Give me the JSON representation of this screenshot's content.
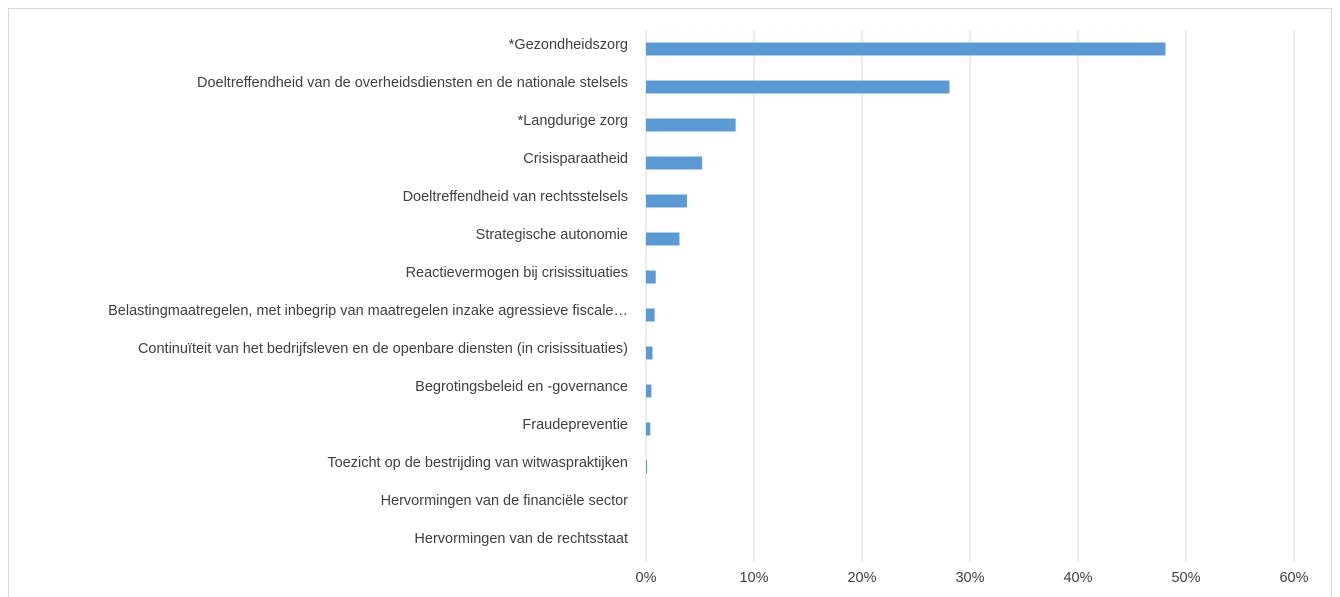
{
  "chart_data": {
    "type": "hbar",
    "categories": [
      "*Gezondheidszorg",
      "Doeltreffendheid van de overheidsdiensten en de nationale stelsels",
      "*Langdurige zorg",
      "Crisisparaatheid",
      "Doeltreffendheid van rechtsstelsels",
      "Strategische autonomie",
      "Reactievermogen bij crisissituaties",
      "Belastingmaatregelen, met inbegrip van maatregelen inzake agressieve fiscale…",
      "Continuïteit van het bedrijfsleven en de openbare diensten (in crisissituaties)",
      "Begrotingsbeleid en -governance",
      "Fraudepreventie",
      "Toezicht op de bestrijding van witwaspraktijken",
      "Hervormingen van de financiële sector",
      "Hervormingen van de rechtsstaat"
    ],
    "values": [
      48.1,
      28.1,
      8.3,
      5.2,
      3.8,
      3.1,
      0.9,
      0.8,
      0.6,
      0.5,
      0.4,
      0.1,
      0,
      0
    ],
    "color": "#5b9bd5",
    "xlim": [
      0,
      60
    ],
    "xticks": [
      {
        "value": 0,
        "label": "0%"
      },
      {
        "value": 10,
        "label": "10%"
      },
      {
        "value": 20,
        "label": "20%"
      },
      {
        "value": 30,
        "label": "30%"
      },
      {
        "value": 40,
        "label": "40%"
      },
      {
        "value": 50,
        "label": "50%"
      },
      {
        "value": 60,
        "label": "60%"
      }
    ],
    "grid": true
  }
}
